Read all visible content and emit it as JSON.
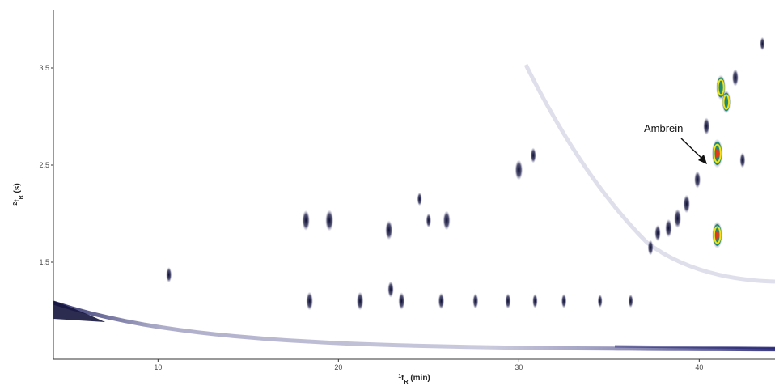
{
  "chart_data": {
    "type": "heatmap",
    "title": "",
    "xlabel_sup": "1",
    "xlabel_main": "t",
    "xlabel_sub": "R",
    "xlabel_unit": " (min)",
    "ylabel_sup": "2",
    "ylabel_main": "t",
    "ylabel_sub": "R",
    "ylabel_unit": " (s)",
    "xlim": [
      4.2,
      44.2
    ],
    "ylim": [
      0.5,
      4.1
    ],
    "x_ticks": [
      10,
      20,
      30,
      40
    ],
    "y_ticks": [
      1.5,
      2.5,
      3.5
    ],
    "x_tick_labels": [
      "10",
      "20",
      "30",
      "40"
    ],
    "y_tick_labels": [
      "1.5",
      "2.5",
      "3.5"
    ],
    "grid": false,
    "colors": {
      "low": "#1a1a6e",
      "mid": "#1f8a7a",
      "high_yellow": "#f2e21a",
      "peak_red": "#e03a1e",
      "band": "#c9c9dd"
    },
    "annotation": {
      "text": "Ambrein",
      "x": 41.0,
      "y": 2.6
    },
    "peaks": [
      {
        "x": 10.6,
        "y": 1.37,
        "intensity": 0.3
      },
      {
        "x": 18.2,
        "y": 1.93,
        "intensity": 0.55
      },
      {
        "x": 19.5,
        "y": 1.93,
        "intensity": 0.6
      },
      {
        "x": 22.8,
        "y": 1.83,
        "intensity": 0.5
      },
      {
        "x": 25.0,
        "y": 1.93,
        "intensity": 0.25
      },
      {
        "x": 26.0,
        "y": 1.93,
        "intensity": 0.5
      },
      {
        "x": 30.0,
        "y": 2.45,
        "intensity": 0.55
      },
      {
        "x": 30.8,
        "y": 2.6,
        "intensity": 0.3
      },
      {
        "x": 24.5,
        "y": 2.15,
        "intensity": 0.2
      },
      {
        "x": 18.4,
        "y": 1.1,
        "intensity": 0.45
      },
      {
        "x": 21.2,
        "y": 1.1,
        "intensity": 0.45
      },
      {
        "x": 23.5,
        "y": 1.1,
        "intensity": 0.4
      },
      {
        "x": 22.9,
        "y": 1.22,
        "intensity": 0.35
      },
      {
        "x": 25.7,
        "y": 1.1,
        "intensity": 0.35
      },
      {
        "x": 27.6,
        "y": 1.1,
        "intensity": 0.3
      },
      {
        "x": 29.4,
        "y": 1.1,
        "intensity": 0.3
      },
      {
        "x": 30.9,
        "y": 1.1,
        "intensity": 0.25
      },
      {
        "x": 32.5,
        "y": 1.1,
        "intensity": 0.25
      },
      {
        "x": 34.5,
        "y": 1.1,
        "intensity": 0.2
      },
      {
        "x": 36.2,
        "y": 1.1,
        "intensity": 0.2
      },
      {
        "x": 37.3,
        "y": 1.65,
        "intensity": 0.3
      },
      {
        "x": 37.7,
        "y": 1.8,
        "intensity": 0.35
      },
      {
        "x": 38.3,
        "y": 1.85,
        "intensity": 0.45
      },
      {
        "x": 38.8,
        "y": 1.95,
        "intensity": 0.5
      },
      {
        "x": 39.3,
        "y": 2.1,
        "intensity": 0.45
      },
      {
        "x": 39.9,
        "y": 2.35,
        "intensity": 0.4
      },
      {
        "x": 40.4,
        "y": 2.9,
        "intensity": 0.4
      },
      {
        "x": 41.0,
        "y": 1.78,
        "intensity": 0.9
      },
      {
        "x": 41.0,
        "y": 2.62,
        "intensity": 1.0
      },
      {
        "x": 41.2,
        "y": 3.3,
        "intensity": 0.8
      },
      {
        "x": 41.5,
        "y": 3.15,
        "intensity": 0.7
      },
      {
        "x": 42.0,
        "y": 3.4,
        "intensity": 0.4
      },
      {
        "x": 42.4,
        "y": 2.55,
        "intensity": 0.3
      },
      {
        "x": 43.5,
        "y": 3.75,
        "intensity": 0.2
      }
    ]
  }
}
